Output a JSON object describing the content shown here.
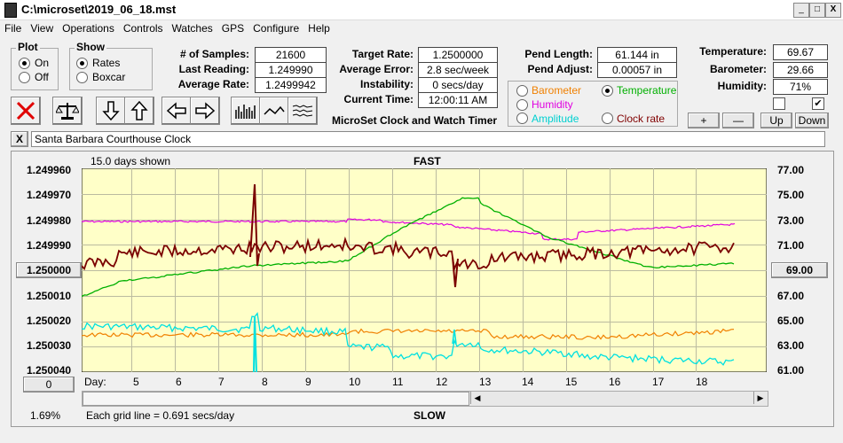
{
  "window": {
    "title": "C:\\microset\\2019_06_18.mst",
    "min": "_",
    "max": "□",
    "close": "X"
  },
  "menu": [
    "File",
    "View",
    "Operations",
    "Controls",
    "Watches",
    "GPS",
    "Configure",
    "Help"
  ],
  "plot": {
    "title": "Plot",
    "on": "On",
    "off": "Off"
  },
  "show": {
    "title": "Show",
    "rates": "Rates",
    "boxcar": "Boxcar"
  },
  "stats": {
    "samples_label": "# of Samples:",
    "samples": "21600",
    "last_label": "Last Reading:",
    "last": "1.249990",
    "avg_label": "Average Rate:",
    "avg": "1.2499942"
  },
  "target": {
    "target_label": "Target Rate:",
    "target": "1.2500000",
    "error_label": "Average Error:",
    "error": "2.8 sec/week",
    "instab_label": "Instability:",
    "instab": "0 secs/day",
    "time_label": "Current Time:",
    "time": "12:00:11 AM"
  },
  "pend": {
    "length_label": "Pend Length:",
    "length": "61.144 in",
    "adjust_label": "Pend Adjust:",
    "adjust": "0.00057 in"
  },
  "env": {
    "temp_label": "Temperature:",
    "temp": "69.67",
    "baro_label": "Barometer:",
    "baro": "29.66",
    "hum_label": "Humidity:",
    "hum": "71%"
  },
  "sensor_options": {
    "barometer": "Barometer",
    "temperature": "Temperature",
    "humidity": "Humidity",
    "amplitude": "Amplitude",
    "clock_rate": "Clock rate"
  },
  "app_caption": "MicroSet Clock and Watch Timer",
  "nav_buttons": {
    "plus": "+",
    "minus": "—",
    "up": "Up",
    "down": "Down"
  },
  "clock_name": "Santa Barbara Courthouse Clock",
  "clear_btn": "X",
  "chart": {
    "days_shown": "15.0 days shown",
    "fast": "FAST",
    "slow": "SLOW",
    "left_axis": [
      "1.249960",
      "1.249970",
      "1.249980",
      "1.249990",
      "1.250000",
      "1.250010",
      "1.250020",
      "1.250030",
      "1.250040"
    ],
    "right_axis": [
      "77.00",
      "75.00",
      "73.00",
      "71.00",
      "69.00",
      "67.00",
      "65.00",
      "63.00",
      "61.00"
    ],
    "left_mid_btn": "1.250000",
    "right_mid_btn": "69.00",
    "day_label": "Day:",
    "days": [
      "5",
      "6",
      "7",
      "8",
      "9",
      "10",
      "11",
      "12",
      "13",
      "14",
      "15",
      "16",
      "17",
      "18"
    ],
    "zero_btn": "0",
    "percent": "1.69%",
    "grid_note": "Each grid line = 0.691 secs/day"
  },
  "colors": {
    "plot_bg": "#ffffc8",
    "rate": "#7a0000",
    "temperature": "#00b000",
    "humidity": "#e000e0",
    "barometer": "#f08000",
    "amplitude": "#00e0e0"
  }
}
